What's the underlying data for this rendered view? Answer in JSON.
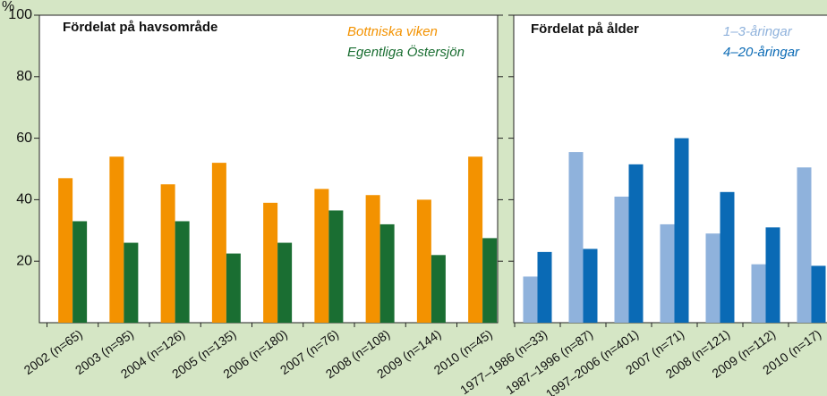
{
  "chart_data": [
    {
      "type": "bar",
      "title": "Fördelat på havsområde",
      "y_label": "%",
      "categories": [
        "2002 (n=65)",
        "2003 (n=95)",
        "2004 (n=126)",
        "2005 (n=135)",
        "2006 (n=180)",
        "2007 (n=76)",
        "2008 (n=108)",
        "2009 (n=144)",
        "2010 (n=45)"
      ],
      "series": [
        {
          "name": "Bottniska viken",
          "color": "#f39200",
          "values": [
            47,
            54,
            45,
            52,
            39,
            43.5,
            41.5,
            40,
            54
          ]
        },
        {
          "name": "Egentliga Östersjön",
          "color": "#1a6e32",
          "values": [
            33,
            26,
            33,
            22.5,
            26,
            36.5,
            32,
            22,
            27.5
          ]
        }
      ],
      "ylim": [
        0,
        100
      ],
      "yticks": [
        20,
        40,
        60,
        80,
        100
      ]
    },
    {
      "type": "bar",
      "title": "Fördelat på ålder",
      "categories": [
        "1977–1986 (n=33)",
        "1987–1996 (n=87)",
        "1997–2006 (n=401)",
        "2007 (n=71)",
        "2008 (n=121)",
        "2009 (n=112)",
        "2010 (n=17)"
      ],
      "series": [
        {
          "name": "1–3-åringar",
          "color": "#8fb2dc",
          "values": [
            15,
            55.5,
            41,
            32,
            29,
            19,
            50.5
          ]
        },
        {
          "name": "4–20-åringar",
          "color": "#0a6ab5",
          "values": [
            23,
            24,
            51.5,
            60,
            42.5,
            31,
            18.5
          ]
        }
      ],
      "ylim": [
        0,
        100
      ]
    }
  ]
}
